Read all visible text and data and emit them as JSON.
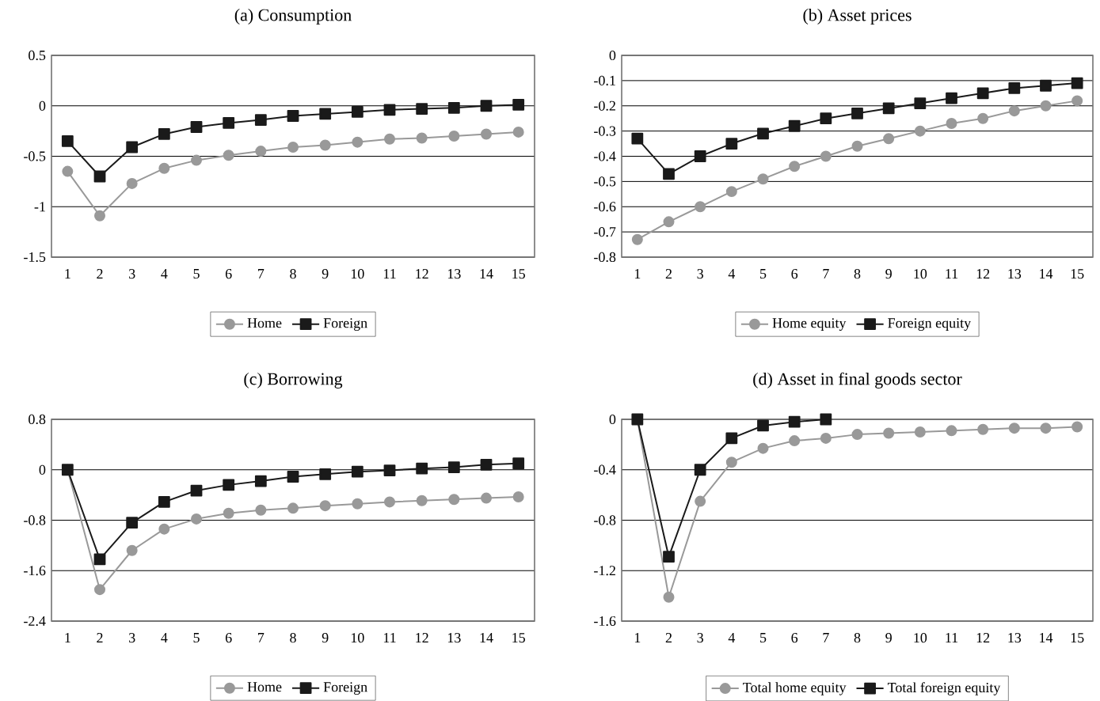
{
  "chart_data": [
    {
      "type": "line",
      "title": "(a) Consumption",
      "categories": [
        "1",
        "2",
        "3",
        "4",
        "5",
        "6",
        "7",
        "8",
        "9",
        "10",
        "11",
        "12",
        "13",
        "14",
        "15"
      ],
      "ylim": [
        -1.5,
        0.5
      ],
      "yticks": [
        -1.5,
        -1,
        -0.5,
        0,
        0.5
      ],
      "grid": "y",
      "legend": "bottom",
      "line_style": "solid",
      "series": [
        {
          "name": "Home",
          "color": "#999999",
          "marker": "circle",
          "values": [
            -0.65,
            -1.09,
            -0.77,
            -0.62,
            -0.54,
            -0.49,
            -0.45,
            -0.41,
            -0.39,
            -0.36,
            -0.33,
            -0.32,
            -0.3,
            -0.28,
            -0.26
          ]
        },
        {
          "name": "Foreign",
          "color": "#1a1a1a",
          "marker": "square",
          "values": [
            -0.35,
            -0.7,
            -0.41,
            -0.28,
            -0.21,
            -0.17,
            -0.14,
            -0.1,
            -0.08,
            -0.06,
            -0.04,
            -0.03,
            -0.02,
            0.0,
            0.01
          ]
        }
      ]
    },
    {
      "type": "line",
      "title": "(b) Asset prices",
      "categories": [
        "1",
        "2",
        "3",
        "4",
        "5",
        "6",
        "7",
        "8",
        "9",
        "10",
        "11",
        "12",
        "13",
        "14",
        "15"
      ],
      "ylim": [
        -0.8,
        0
      ],
      "yticks": [
        -0.8,
        -0.7,
        -0.6,
        -0.5,
        -0.4,
        -0.3,
        -0.2,
        -0.1,
        0
      ],
      "grid": "y",
      "legend": "bottom",
      "line_style": "solid",
      "series": [
        {
          "name": "Home equity",
          "color": "#999999",
          "marker": "circle",
          "values": [
            -0.73,
            -0.66,
            -0.6,
            -0.54,
            -0.49,
            -0.44,
            -0.4,
            -0.36,
            -0.33,
            -0.3,
            -0.27,
            -0.25,
            -0.22,
            -0.2,
            -0.18
          ]
        },
        {
          "name": "Foreign equity",
          "color": "#1a1a1a",
          "marker": "square",
          "values": [
            -0.33,
            -0.47,
            -0.4,
            -0.35,
            -0.31,
            -0.28,
            -0.25,
            -0.23,
            -0.21,
            -0.19,
            -0.17,
            -0.15,
            -0.13,
            -0.12,
            -0.11
          ]
        }
      ]
    },
    {
      "type": "line",
      "title": "(c) Borrowing",
      "categories": [
        "1",
        "2",
        "3",
        "4",
        "5",
        "6",
        "7",
        "8",
        "9",
        "10",
        "11",
        "12",
        "13",
        "14",
        "15"
      ],
      "ylim": [
        -2.4,
        0.8
      ],
      "yticks": [
        -2.4,
        -1.6,
        -0.8,
        0,
        0.8
      ],
      "grid": "y",
      "legend": "bottom",
      "line_style": "solid",
      "series": [
        {
          "name": "Home",
          "color": "#999999",
          "marker": "circle",
          "values": [
            0,
            -1.9,
            -1.28,
            -0.94,
            -0.78,
            -0.69,
            -0.64,
            -0.61,
            -0.57,
            -0.54,
            -0.51,
            -0.49,
            -0.47,
            -0.45,
            -0.43
          ]
        },
        {
          "name": "Foreign",
          "color": "#1a1a1a",
          "marker": "square",
          "values": [
            0,
            -1.42,
            -0.84,
            -0.51,
            -0.33,
            -0.24,
            -0.18,
            -0.11,
            -0.07,
            -0.03,
            -0.01,
            0.02,
            0.04,
            0.08,
            0.1
          ]
        }
      ]
    },
    {
      "type": "line",
      "title": "(d) Asset in final goods sector",
      "categories": [
        "1",
        "2",
        "3",
        "4",
        "5",
        "6",
        "7",
        "8",
        "9",
        "10",
        "11",
        "12",
        "13",
        "14",
        "15"
      ],
      "ylim": [
        -1.6,
        0
      ],
      "yticks": [
        -1.6,
        -1.2,
        -0.8,
        -0.4,
        0
      ],
      "grid": "y",
      "legend": "bottom",
      "line_style": "solid",
      "series": [
        {
          "name": "Total home equity",
          "color": "#999999",
          "marker": "circle",
          "values": [
            0,
            -1.41,
            -0.65,
            -0.34,
            -0.23,
            -0.17,
            -0.15,
            -0.12,
            -0.11,
            -0.1,
            -0.09,
            -0.08,
            -0.07,
            -0.07,
            -0.06
          ]
        },
        {
          "name": "Total foreign equity",
          "color": "#1a1a1a",
          "marker": "square",
          "values": [
            0,
            -1.09,
            -0.4,
            -0.15,
            -0.05,
            -0.02,
            0,
            null,
            null,
            null,
            null,
            null,
            null,
            null,
            null
          ]
        }
      ]
    }
  ]
}
